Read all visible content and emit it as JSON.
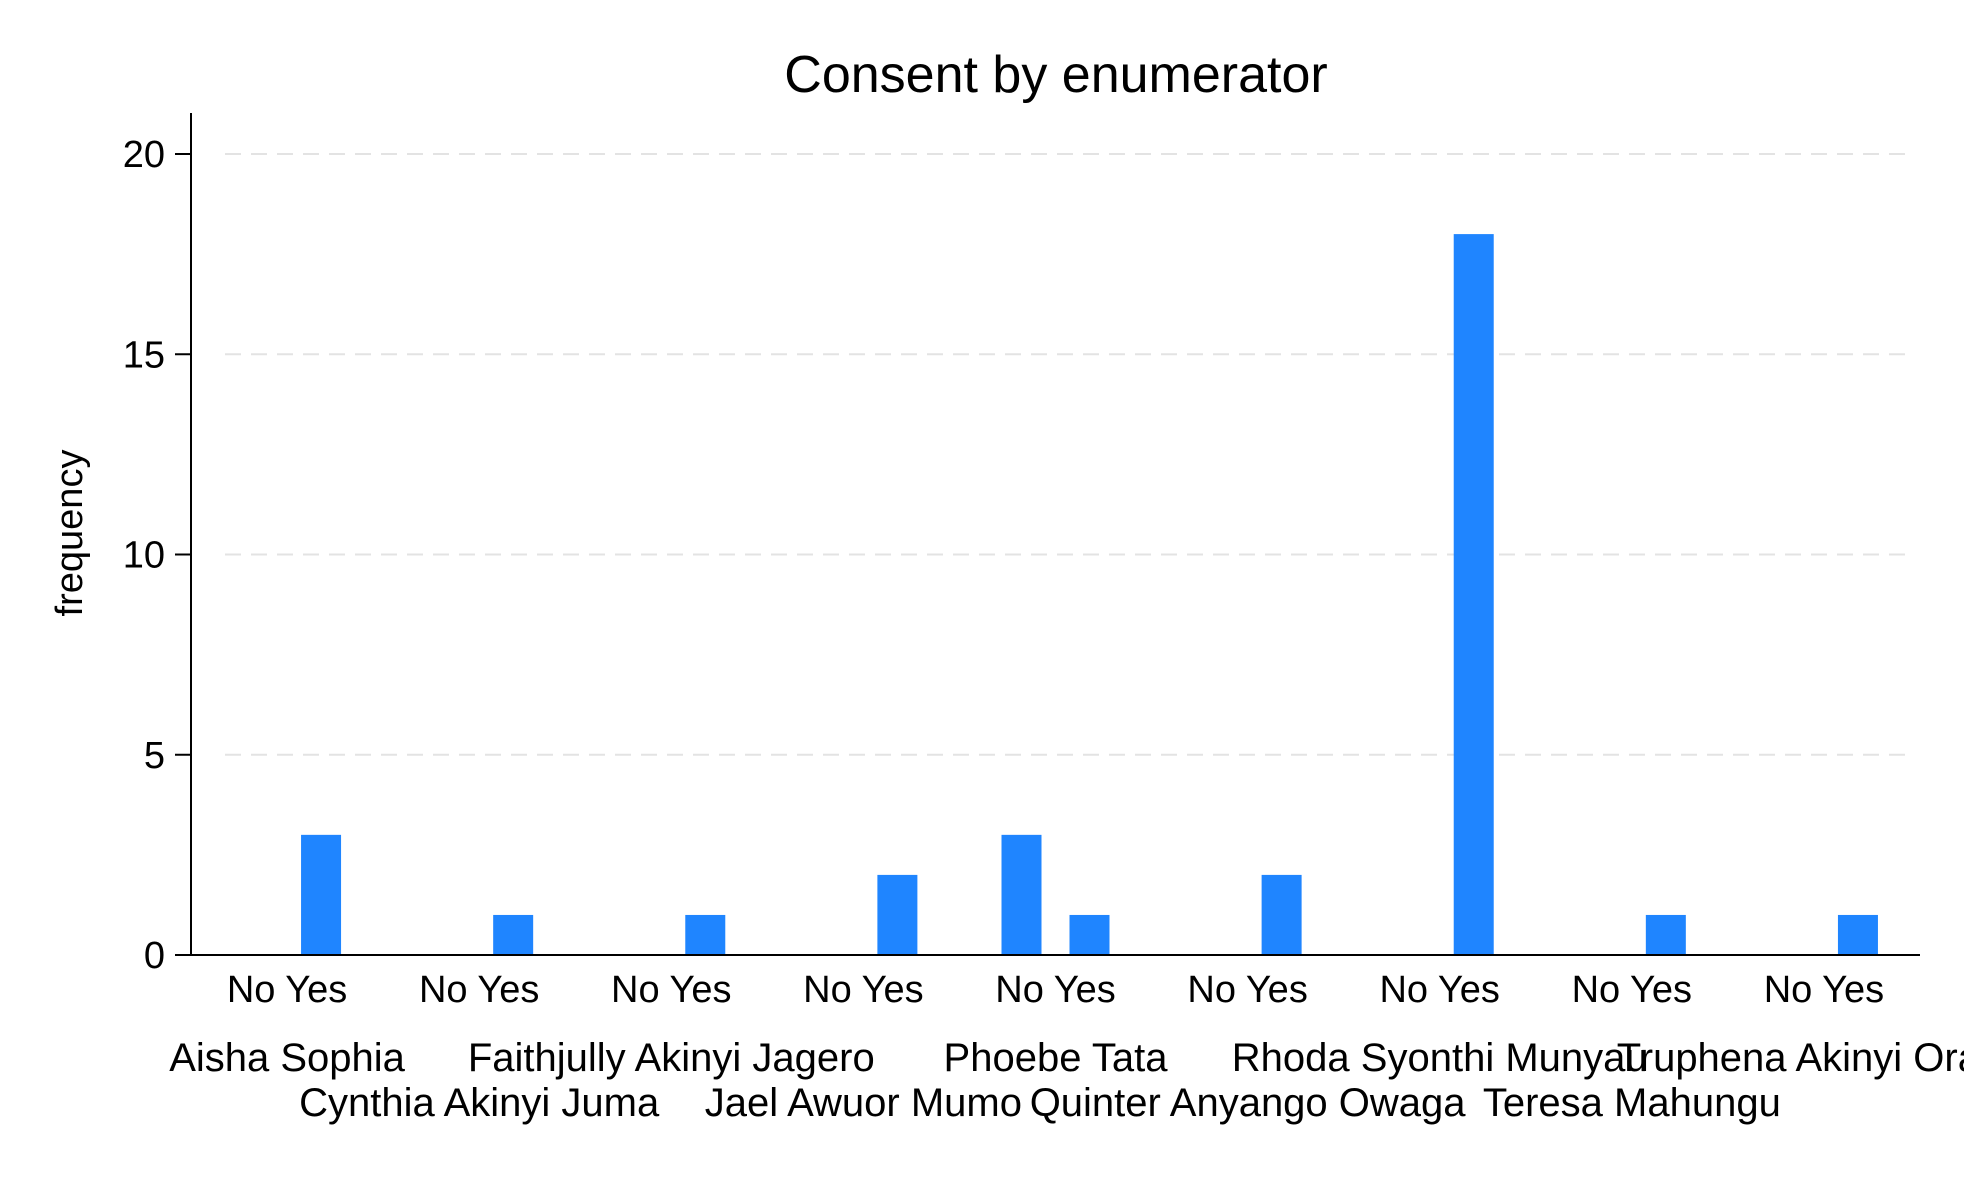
{
  "chart_data": {
    "type": "bar",
    "title": "Consent by enumerator",
    "xlabel": "",
    "ylabel": "frequency",
    "ylim": [
      0,
      21
    ],
    "yticks": [
      0,
      5,
      10,
      15,
      20
    ],
    "grid": true,
    "bar_color": "#1f85ff",
    "groups": [
      {
        "name": "Aisha Sophia",
        "bars": [
          {
            "label": "No",
            "value": 0
          },
          {
            "label": "Yes",
            "value": 3
          }
        ]
      },
      {
        "name": "Cynthia Akinyi Juma",
        "bars": [
          {
            "label": "No",
            "value": 0
          },
          {
            "label": "Yes",
            "value": 1
          }
        ]
      },
      {
        "name": "Faithjully Akinyi Jagero",
        "bars": [
          {
            "label": "No",
            "value": 0
          },
          {
            "label": "Yes",
            "value": 1
          }
        ]
      },
      {
        "name": "Jael Awuor Mumo",
        "bars": [
          {
            "label": "No",
            "value": 0
          },
          {
            "label": "Yes",
            "value": 2
          }
        ]
      },
      {
        "name": "Phoebe Tata",
        "bars": [
          {
            "label": "No",
            "value": 3
          },
          {
            "label": "Yes",
            "value": 1
          }
        ]
      },
      {
        "name": "Quinter Anyango Owaga",
        "bars": [
          {
            "label": "No",
            "value": 0
          },
          {
            "label": "Yes",
            "value": 2
          }
        ]
      },
      {
        "name": "Rhoda Syonthi Munyau",
        "bars": [
          {
            "label": "No",
            "value": 0
          },
          {
            "label": "Yes",
            "value": 18
          }
        ]
      },
      {
        "name": "Teresa Mahungu",
        "bars": [
          {
            "label": "No",
            "value": 0
          },
          {
            "label": "Yes",
            "value": 1
          }
        ]
      },
      {
        "name": "Truphena Akinyi Orachi",
        "bars": [
          {
            "label": "No",
            "value": 0
          },
          {
            "label": "Yes",
            "value": 1
          }
        ]
      }
    ]
  }
}
